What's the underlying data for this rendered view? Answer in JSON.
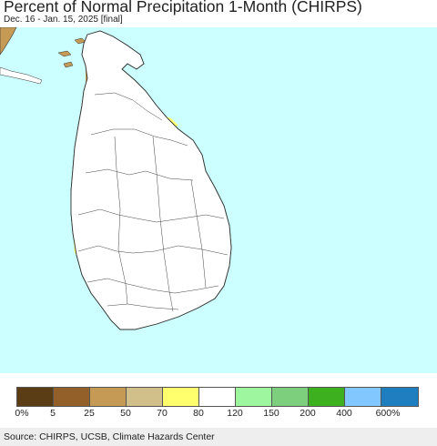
{
  "title": "Percent of Normal Precipitation 1-Month (CHIRPS)",
  "subtitle": "Dec. 16 - Jan. 15, 2025 [final]",
  "colors": {
    "ocean": "#ccffff",
    "land_normal": "#ffffff",
    "border": "#333333"
  },
  "legend": {
    "bins": [
      {
        "color": "#5a3d14"
      },
      {
        "color": "#94602a"
      },
      {
        "color": "#c49a55"
      },
      {
        "color": "#d1c08a"
      },
      {
        "color": "#ffff6e"
      },
      {
        "color": "#ffffff"
      },
      {
        "color": "#9ef79e"
      },
      {
        "color": "#7dcf7d"
      },
      {
        "color": "#3cb01e"
      },
      {
        "color": "#82c8ff"
      },
      {
        "color": "#1e7ebf"
      }
    ],
    "tick_labels": [
      "0%",
      "5",
      "25",
      "50",
      "70",
      "80",
      "120",
      "150",
      "200",
      "400",
      "600%"
    ]
  },
  "source": "Source: CHIRPS, UCSB, Climate Hazards Center"
}
